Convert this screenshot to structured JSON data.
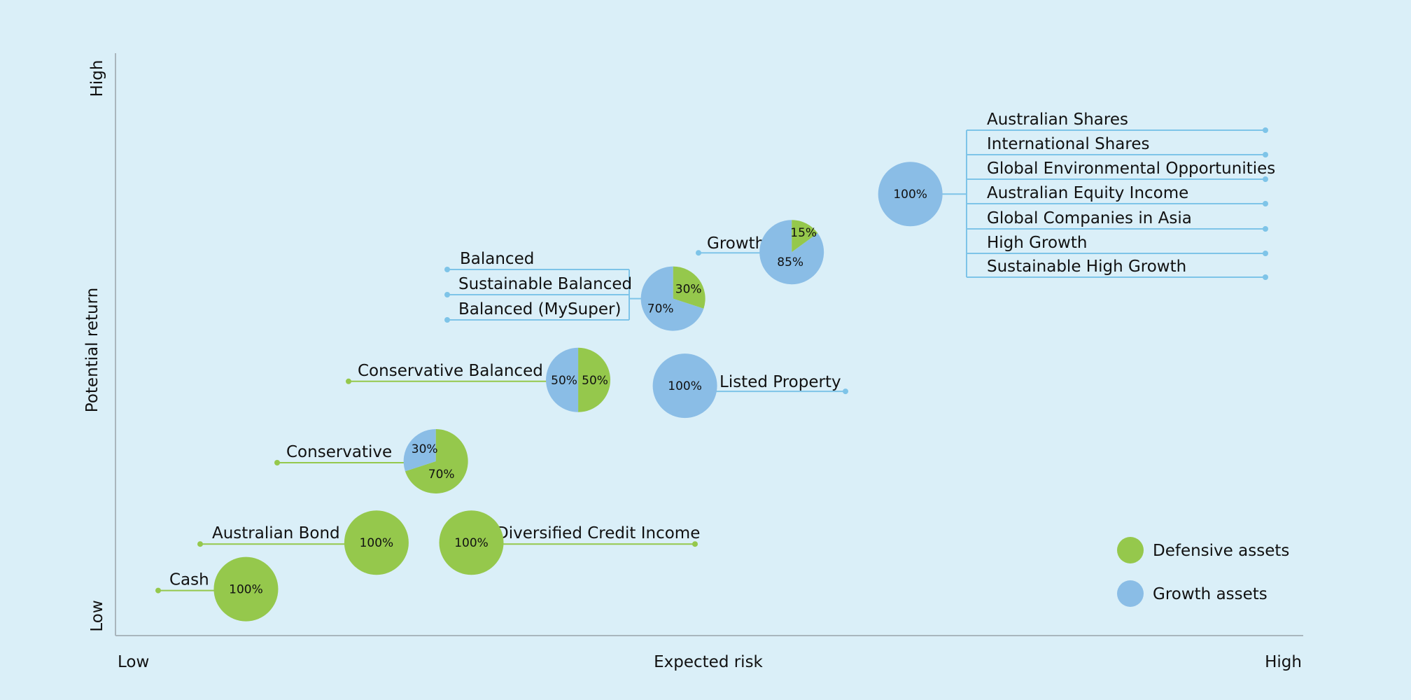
{
  "chart_data": {
    "type": "scatter",
    "xlabel": "Expected risk",
    "ylabel": "Potential return",
    "x_ticks": [
      "Low",
      "High"
    ],
    "y_ticks": [
      "Low",
      "High"
    ],
    "colors": {
      "defensive": "#95c84c",
      "growth": "#8abde6",
      "growth_line": "#7ec4e8"
    },
    "legend": {
      "placement": "bottom-right",
      "items": [
        {
          "key": "defensive",
          "label": "Defensive assets"
        },
        {
          "key": "growth",
          "label": "Growth assets"
        }
      ]
    },
    "funds": [
      {
        "id": "cash",
        "x": 0.11,
        "y": 0.08,
        "defensive": 100,
        "growth": 0,
        "pct_labels": [
          {
            "text": "100%",
            "key": "defensive"
          }
        ],
        "labels": [
          "Cash"
        ]
      },
      {
        "id": "australian-bond",
        "x": 0.22,
        "y": 0.16,
        "defensive": 100,
        "growth": 0,
        "pct_labels": [
          {
            "text": "100%",
            "key": "defensive"
          }
        ],
        "labels": [
          "Australian Bond"
        ]
      },
      {
        "id": "diversified-credit-income",
        "x": 0.3,
        "y": 0.16,
        "defensive": 100,
        "growth": 0,
        "pct_labels": [
          {
            "text": "100%",
            "key": "defensive"
          }
        ],
        "labels": [
          "Diversified Credit Income"
        ]
      },
      {
        "id": "conservative",
        "x": 0.27,
        "y": 0.3,
        "defensive": 70,
        "growth": 30,
        "pct_labels": [
          {
            "text": "30%",
            "key": "growth"
          },
          {
            "text": "70%",
            "key": "defensive"
          }
        ],
        "labels": [
          "Conservative"
        ]
      },
      {
        "id": "conservative-balanced",
        "x": 0.39,
        "y": 0.44,
        "defensive": 50,
        "growth": 50,
        "pct_labels": [
          {
            "text": "50%",
            "key": "defensive"
          },
          {
            "text": "50%",
            "key": "growth"
          }
        ],
        "labels": [
          "Conservative Balanced"
        ]
      },
      {
        "id": "listed-property",
        "x": 0.48,
        "y": 0.43,
        "defensive": 0,
        "growth": 100,
        "pct_labels": [
          {
            "text": "100%",
            "key": "growth"
          }
        ],
        "labels": [
          "Listed Property"
        ]
      },
      {
        "id": "balanced",
        "x": 0.47,
        "y": 0.58,
        "defensive": 30,
        "growth": 70,
        "pct_labels": [
          {
            "text": "30%",
            "key": "defensive"
          },
          {
            "text": "70%",
            "key": "growth"
          }
        ],
        "labels": [
          "Balanced",
          "Sustainable Balanced",
          "Balanced (MySuper)"
        ]
      },
      {
        "id": "growth",
        "x": 0.57,
        "y": 0.66,
        "defensive": 15,
        "growth": 85,
        "pct_labels": [
          {
            "text": "15%",
            "key": "defensive"
          },
          {
            "text": "85%",
            "key": "growth"
          }
        ],
        "labels": [
          "Growth"
        ]
      },
      {
        "id": "high-growth-group",
        "x": 0.67,
        "y": 0.76,
        "defensive": 0,
        "growth": 100,
        "pct_labels": [
          {
            "text": "100%",
            "key": "growth"
          }
        ],
        "labels": [
          "Australian Shares",
          "International Shares",
          "Global Environmental Opportunities",
          "Australian Equity Income",
          "Global Companies in Asia",
          "High Growth",
          "Sustainable High Growth"
        ]
      }
    ]
  }
}
